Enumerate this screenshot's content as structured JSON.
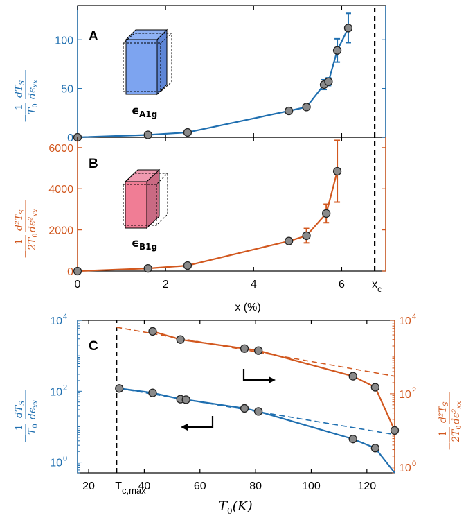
{
  "colors": {
    "blue": "#1f6fb0",
    "orange": "#d2581f",
    "marker_face": "#8a8a8a",
    "vline": "#000000"
  },
  "chart_data": [
    {
      "panel": "A",
      "type": "line",
      "title": "",
      "xlabel": "",
      "ylabel_tex": "-1/T0 dTS/dεxx",
      "ylabel": {
        "prefix": "−",
        "num": "1",
        "den": "T",
        "den_sub": "0",
        "d_num": "dT",
        "d_num_sub": "S",
        "d_den": "dϵ",
        "d_den_sub": "xx"
      },
      "xlim": [
        0,
        7
      ],
      "ylim": [
        0,
        135
      ],
      "yticks": [
        "0",
        "50",
        "100"
      ],
      "grid": false,
      "inset_label": {
        "base": "ϵ",
        "sub": "A1g"
      },
      "series": [
        {
          "color": "#1f6fb0",
          "x": [
            0,
            1.6,
            2.5,
            4.8,
            5.2,
            5.6,
            5.7,
            5.9,
            6.15
          ],
          "y": [
            0,
            2.5,
            5,
            27,
            31,
            54,
            57,
            89,
            112
          ],
          "err": [
            0,
            0,
            0,
            0,
            0,
            5,
            4,
            12,
            15
          ]
        }
      ],
      "vline": {
        "x": 6.75,
        "label": "x",
        "label_sub": "c"
      }
    },
    {
      "panel": "B",
      "type": "line",
      "title": "",
      "xlabel": "x (%)",
      "xticks": [
        "0",
        "2",
        "4",
        "6"
      ],
      "ylabel": {
        "prefix": "−",
        "num": "1",
        "den": "2T",
        "den_sub": "0",
        "d_num": "d²T",
        "d_num_sub": "S",
        "d_den": "dϵ²",
        "d_den_sub": "xx"
      },
      "xlim": [
        0,
        7
      ],
      "ylim": [
        0,
        6500
      ],
      "yticks": [
        "0",
        "2000",
        "4000",
        "6000"
      ],
      "grid": false,
      "inset_label": {
        "base": "ϵ",
        "sub": "B1g"
      },
      "series": [
        {
          "color": "#d2581f",
          "x": [
            0,
            1.6,
            2.5,
            4.8,
            5.2,
            5.65,
            5.9
          ],
          "y": [
            0,
            130,
            270,
            1460,
            1720,
            2800,
            4850
          ],
          "err": [
            0,
            0,
            0,
            0,
            350,
            450,
            1500
          ]
        }
      ],
      "vline": {
        "x": 6.75,
        "label": "x",
        "label_sub": "c"
      }
    },
    {
      "panel": "C",
      "type": "line",
      "title": "",
      "xlabel": {
        "base": "T",
        "sub": "0",
        "rest": "(K)"
      },
      "xlim": [
        16,
        130
      ],
      "xticks": [
        "20",
        "40",
        "60",
        "80",
        "100",
        "120"
      ],
      "x_marker": {
        "x": 30,
        "label": "T",
        "label_sub": "c,max"
      },
      "y_left": {
        "scale": "log",
        "lim": [
          0.5,
          10000
        ],
        "ticks": [
          {
            "base": "10",
            "exp": "0"
          },
          {
            "base": "10",
            "exp": "2"
          },
          {
            "base": "10",
            "exp": "4"
          }
        ]
      },
      "y_right": {
        "scale": "log",
        "lim": [
          0.7,
          10000
        ],
        "ticks": [
          {
            "base": "10",
            "exp": "0"
          },
          {
            "base": "10",
            "exp": "2"
          },
          {
            "base": "10",
            "exp": "4"
          }
        ]
      },
      "grid": false,
      "series": [
        {
          "axis": "left",
          "color": "#1f6fb0",
          "x": [
            31,
            43,
            53,
            55,
            76,
            81,
            115,
            123,
            130
          ],
          "y": [
            120,
            90,
            60,
            58,
            33,
            27,
            4.5,
            2.5,
            0.5
          ],
          "fit_end": [
            130,
            6
          ]
        },
        {
          "axis": "right",
          "color": "#d2581f",
          "x": [
            43,
            53,
            76,
            81,
            115,
            123,
            130
          ],
          "y": [
            5000,
            3000,
            1700,
            1500,
            300,
            150,
            10
          ],
          "fit_start": [
            30,
            6500
          ],
          "fit_end": [
            130,
            300
          ]
        }
      ]
    }
  ]
}
